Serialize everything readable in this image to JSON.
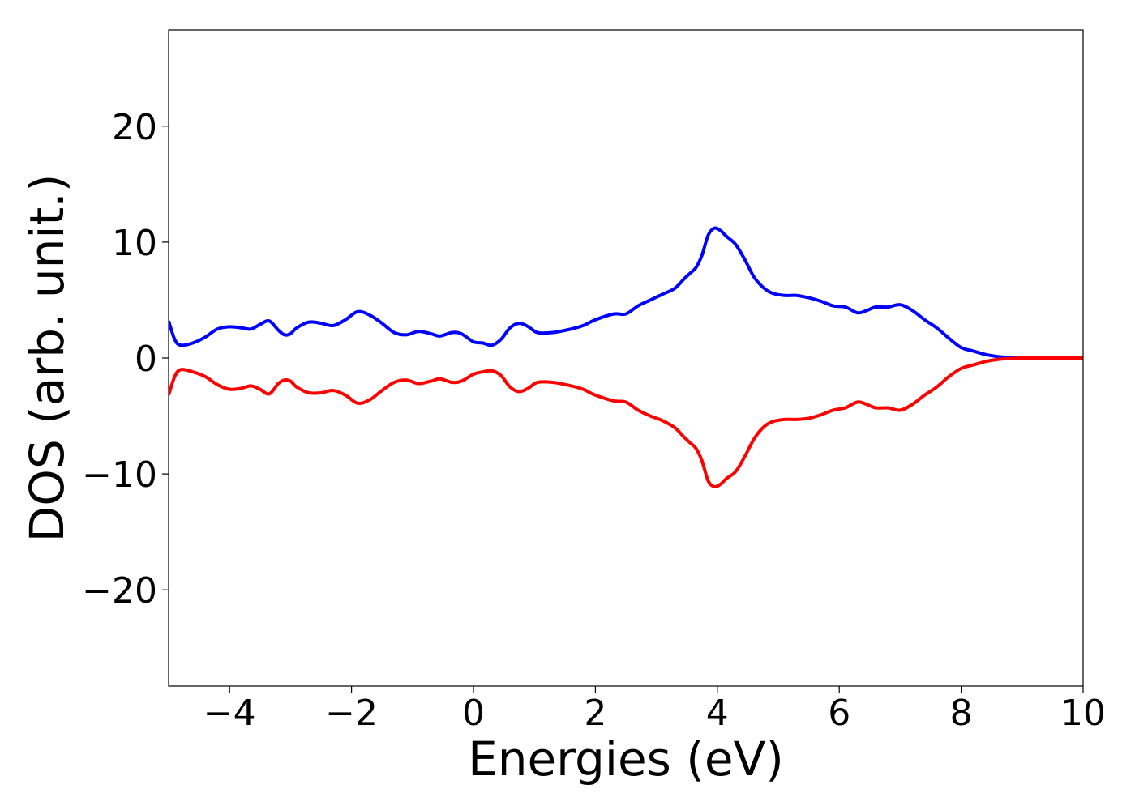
{
  "chart_data": {
    "type": "line",
    "title": "",
    "xlabel": "Energies (eV)",
    "ylabel": "DOS (arb. unit.)",
    "xlim": [
      -5,
      10
    ],
    "ylim": [
      -28.3,
      28.3
    ],
    "xticks": [
      -4,
      -2,
      0,
      2,
      4,
      6,
      8,
      10
    ],
    "xtick_labels": [
      "−4",
      "−2",
      "0",
      "2",
      "4",
      "6",
      "8",
      "10"
    ],
    "yticks": [
      -20,
      -10,
      0,
      10,
      20
    ],
    "ytick_labels": [
      "−20",
      "−10",
      "0",
      "10",
      "20"
    ],
    "grid": false,
    "legend": "none",
    "series": [
      {
        "color": "#0000ff",
        "x": [
          -5.0,
          -4.9,
          -4.8,
          -4.6,
          -4.4,
          -4.2,
          -4.0,
          -3.8,
          -3.65,
          -3.5,
          -3.35,
          -3.2,
          -3.1,
          -3.0,
          -2.9,
          -2.7,
          -2.5,
          -2.3,
          -2.1,
          -1.9,
          -1.7,
          -1.5,
          -1.3,
          -1.1,
          -0.9,
          -0.7,
          -0.55,
          -0.35,
          -0.2,
          0.0,
          0.15,
          0.3,
          0.45,
          0.6,
          0.75,
          0.9,
          1.05,
          1.3,
          1.6,
          1.8,
          2.0,
          2.3,
          2.5,
          2.7,
          2.9,
          3.1,
          3.3,
          3.45,
          3.55,
          3.65,
          3.75,
          3.85,
          3.95,
          4.05,
          4.15,
          4.3,
          4.45,
          4.6,
          4.75,
          4.9,
          5.1,
          5.3,
          5.5,
          5.7,
          5.9,
          6.1,
          6.3,
          6.45,
          6.6,
          6.8,
          7.0,
          7.2,
          7.4,
          7.6,
          7.8,
          8.0,
          8.2,
          8.4,
          8.6,
          8.8,
          9.0,
          9.5,
          10.0
        ],
        "y": [
          3.2,
          1.6,
          1.1,
          1.3,
          1.8,
          2.5,
          2.7,
          2.6,
          2.5,
          2.9,
          3.2,
          2.4,
          2.0,
          2.1,
          2.6,
          3.1,
          3.0,
          2.8,
          3.3,
          4.0,
          3.7,
          3.0,
          2.2,
          2.0,
          2.3,
          2.1,
          1.9,
          2.2,
          2.1,
          1.4,
          1.3,
          1.1,
          1.6,
          2.6,
          3.0,
          2.7,
          2.2,
          2.2,
          2.5,
          2.8,
          3.3,
          3.8,
          3.8,
          4.5,
          5.0,
          5.5,
          6.0,
          6.8,
          7.3,
          7.8,
          8.9,
          10.6,
          11.2,
          11.0,
          10.5,
          9.8,
          8.5,
          7.0,
          6.1,
          5.6,
          5.4,
          5.4,
          5.2,
          4.9,
          4.5,
          4.4,
          3.9,
          4.1,
          4.4,
          4.4,
          4.6,
          4.1,
          3.3,
          2.6,
          1.7,
          0.9,
          0.6,
          0.3,
          0.12,
          0.05,
          0.0,
          0.0,
          0.0
        ]
      },
      {
        "color": "#ff0000",
        "x": [
          -5.0,
          -4.9,
          -4.8,
          -4.6,
          -4.4,
          -4.2,
          -4.0,
          -3.8,
          -3.65,
          -3.5,
          -3.35,
          -3.2,
          -3.1,
          -3.0,
          -2.9,
          -2.7,
          -2.5,
          -2.3,
          -2.1,
          -1.9,
          -1.7,
          -1.5,
          -1.3,
          -1.1,
          -0.9,
          -0.7,
          -0.55,
          -0.35,
          -0.2,
          0.0,
          0.15,
          0.3,
          0.45,
          0.6,
          0.75,
          0.9,
          1.05,
          1.3,
          1.6,
          1.8,
          2.0,
          2.3,
          2.5,
          2.7,
          2.9,
          3.1,
          3.3,
          3.45,
          3.55,
          3.65,
          3.75,
          3.85,
          3.95,
          4.05,
          4.15,
          4.3,
          4.45,
          4.6,
          4.75,
          4.9,
          5.1,
          5.3,
          5.5,
          5.7,
          5.9,
          6.1,
          6.3,
          6.45,
          6.6,
          6.8,
          7.0,
          7.2,
          7.4,
          7.6,
          7.8,
          8.0,
          8.2,
          8.4,
          8.6,
          8.8,
          9.0,
          9.5,
          10.0
        ],
        "y": [
          -3.2,
          -1.6,
          -1.0,
          -1.2,
          -1.6,
          -2.3,
          -2.7,
          -2.6,
          -2.4,
          -2.7,
          -3.1,
          -2.2,
          -1.9,
          -2.0,
          -2.5,
          -3.0,
          -3.0,
          -2.8,
          -3.2,
          -3.9,
          -3.6,
          -2.8,
          -2.1,
          -1.9,
          -2.2,
          -2.0,
          -1.8,
          -2.1,
          -2.0,
          -1.4,
          -1.2,
          -1.1,
          -1.5,
          -2.5,
          -2.9,
          -2.6,
          -2.1,
          -2.1,
          -2.4,
          -2.7,
          -3.2,
          -3.7,
          -3.8,
          -4.5,
          -5.0,
          -5.4,
          -6.0,
          -6.8,
          -7.3,
          -7.8,
          -8.9,
          -10.6,
          -11.1,
          -10.9,
          -10.4,
          -9.8,
          -8.5,
          -7.0,
          -6.0,
          -5.5,
          -5.3,
          -5.3,
          -5.2,
          -4.9,
          -4.5,
          -4.3,
          -3.8,
          -4.0,
          -4.3,
          -4.3,
          -4.5,
          -4.0,
          -3.2,
          -2.5,
          -1.6,
          -0.9,
          -0.6,
          -0.3,
          -0.12,
          -0.05,
          0.0,
          0.0,
          0.0
        ]
      }
    ]
  }
}
